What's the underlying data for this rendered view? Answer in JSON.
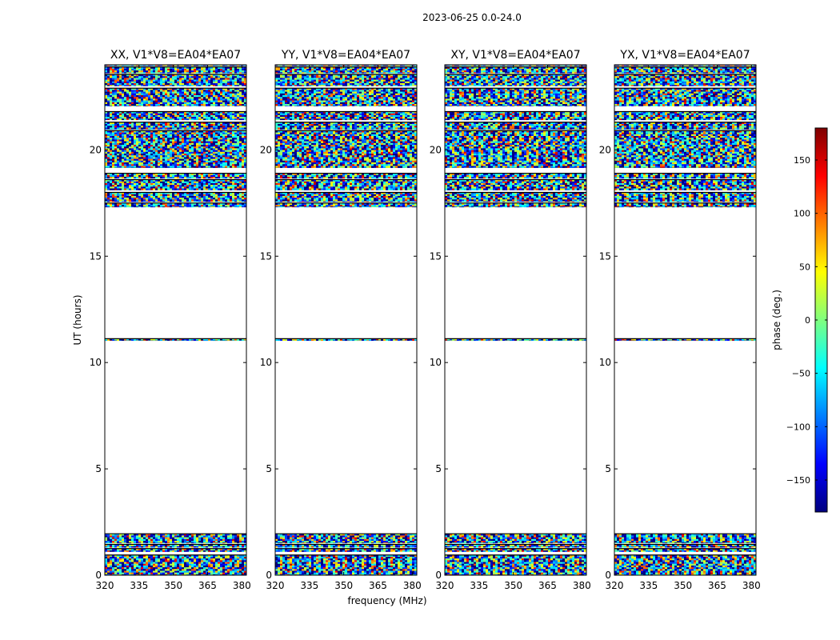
{
  "figure": {
    "suptitle": "2023-06-25 0.0-24.0",
    "xlabel": "frequency (MHz)",
    "ylabel": "UT (hours)"
  },
  "chart_data": {
    "type": "heatmap",
    "title": "2023-06-25 0.0-24.0",
    "xlabel": "frequency (MHz)",
    "ylabel": "UT (hours)",
    "xlim": [
      320,
      382
    ],
    "ylim": [
      0,
      24
    ],
    "xticks": [
      320,
      335,
      350,
      365,
      380
    ],
    "yticks": [
      0,
      5,
      10,
      15,
      20
    ],
    "data_bands_ut_hours": [
      [
        0.0,
        0.95
      ],
      [
        1.1,
        1.25
      ],
      [
        1.3,
        1.45
      ],
      [
        1.5,
        1.95
      ],
      [
        11.02,
        11.12
      ],
      [
        17.3,
        17.5
      ],
      [
        17.55,
        18.0
      ],
      [
        18.1,
        18.6
      ],
      [
        18.65,
        18.9
      ],
      [
        19.15,
        20.9
      ],
      [
        20.95,
        21.3
      ],
      [
        21.4,
        21.8
      ],
      [
        22.05,
        22.9
      ],
      [
        23.0,
        23.55
      ],
      [
        23.6,
        23.9
      ],
      [
        23.95,
        24.0
      ]
    ],
    "panels": [
      {
        "title": "XX, V1*V8=EA04*EA07",
        "polarization": "XX",
        "baseline": "EA04*EA07"
      },
      {
        "title": "YY, V1*V8=EA04*EA07",
        "polarization": "YY",
        "baseline": "EA04*EA07"
      },
      {
        "title": "XY, V1*V8=EA04*EA07",
        "polarization": "XY",
        "baseline": "EA04*EA07"
      },
      {
        "title": "YX, V1*V8=EA04*EA07",
        "polarization": "YX",
        "baseline": "EA04*EA07"
      }
    ],
    "colorbar": {
      "label": "phase (deg.)",
      "range": [
        -180,
        180
      ],
      "ticks": [
        150,
        100,
        50,
        0,
        -50,
        -100,
        -150
      ],
      "tick_labels": [
        "150",
        "100",
        "50",
        "0",
        "−50",
        "−100",
        "−150"
      ],
      "colormap": "jet",
      "colors": [
        "#00007f",
        "#0000ff",
        "#007fff",
        "#00ffff",
        "#7fff7f",
        "#ffff00",
        "#ff7f00",
        "#ff0000",
        "#7f0000"
      ]
    }
  }
}
